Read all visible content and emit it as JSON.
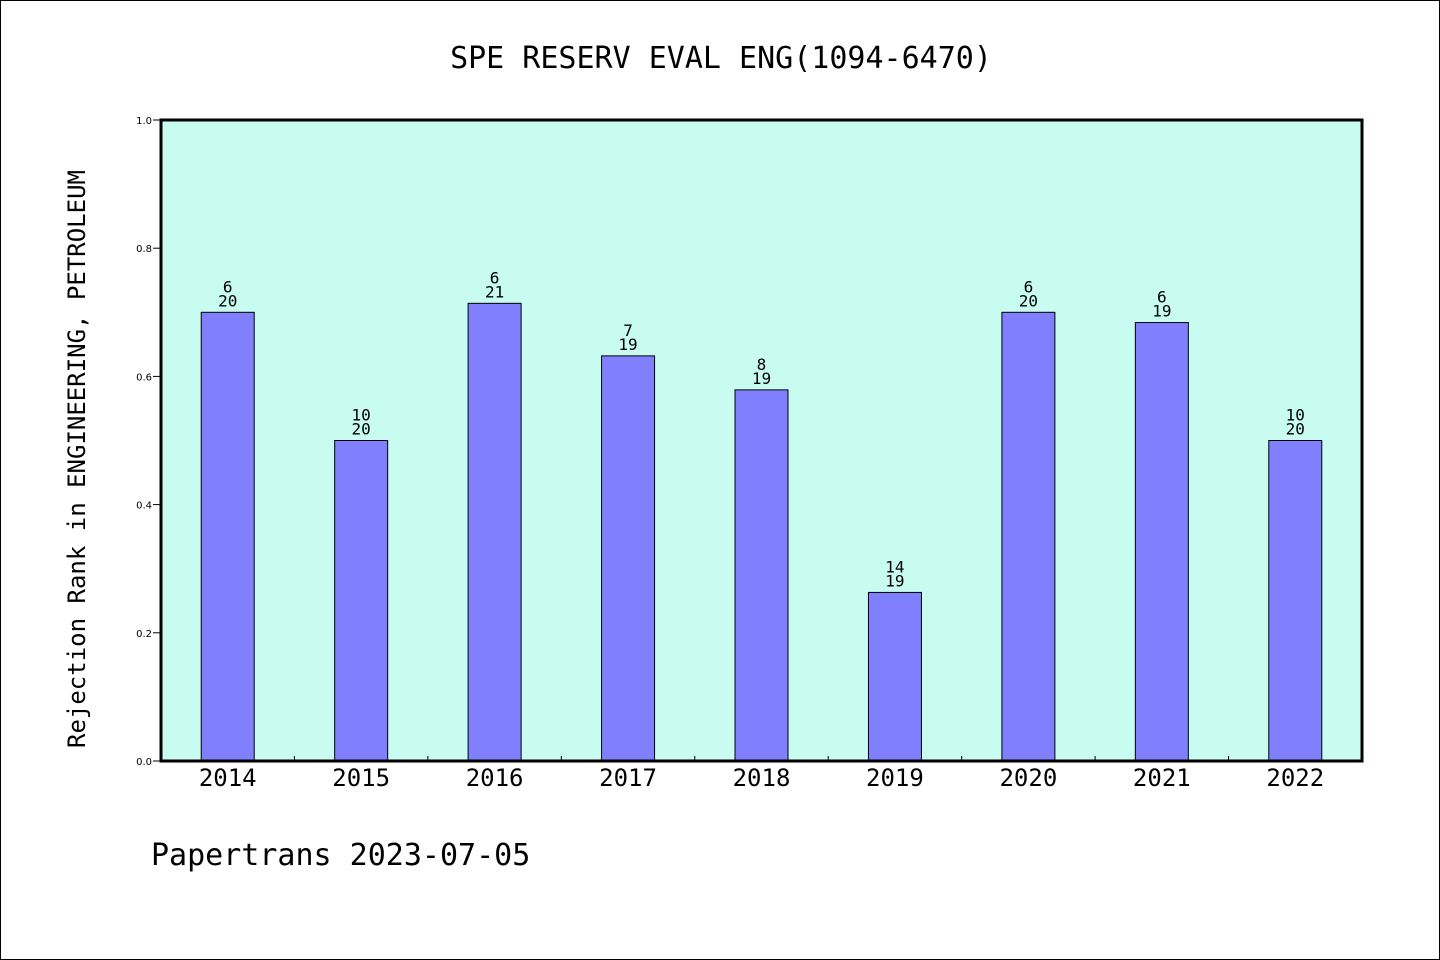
{
  "chart_data": {
    "type": "bar",
    "title": "SPE RESERV EVAL ENG(1094-6470)",
    "ylabel": "Rejection Rank in ENGINEERING, PETROLEUM",
    "xlabel": "",
    "ylim": [
      0.0,
      1.0
    ],
    "yticks": [
      "0.0",
      "0.2",
      "0.4",
      "0.6",
      "0.8",
      "1.0"
    ],
    "categories": [
      "2014",
      "2015",
      "2016",
      "2017",
      "2018",
      "2019",
      "2020",
      "2021",
      "2022"
    ],
    "ranks": [
      6,
      10,
      6,
      7,
      8,
      14,
      6,
      6,
      10
    ],
    "totals": [
      20,
      20,
      21,
      19,
      19,
      19,
      20,
      19,
      20
    ],
    "values": [
      0.7,
      0.5,
      0.714,
      0.632,
      0.579,
      0.263,
      0.7,
      0.684,
      0.5
    ],
    "grid": false,
    "colors": {
      "plot_background": "#c8fcf0",
      "bar_fill": "#8080ff",
      "bar_stroke": "#000000",
      "axis": "#000000"
    }
  },
  "footer": "Papertrans 2023-07-05"
}
